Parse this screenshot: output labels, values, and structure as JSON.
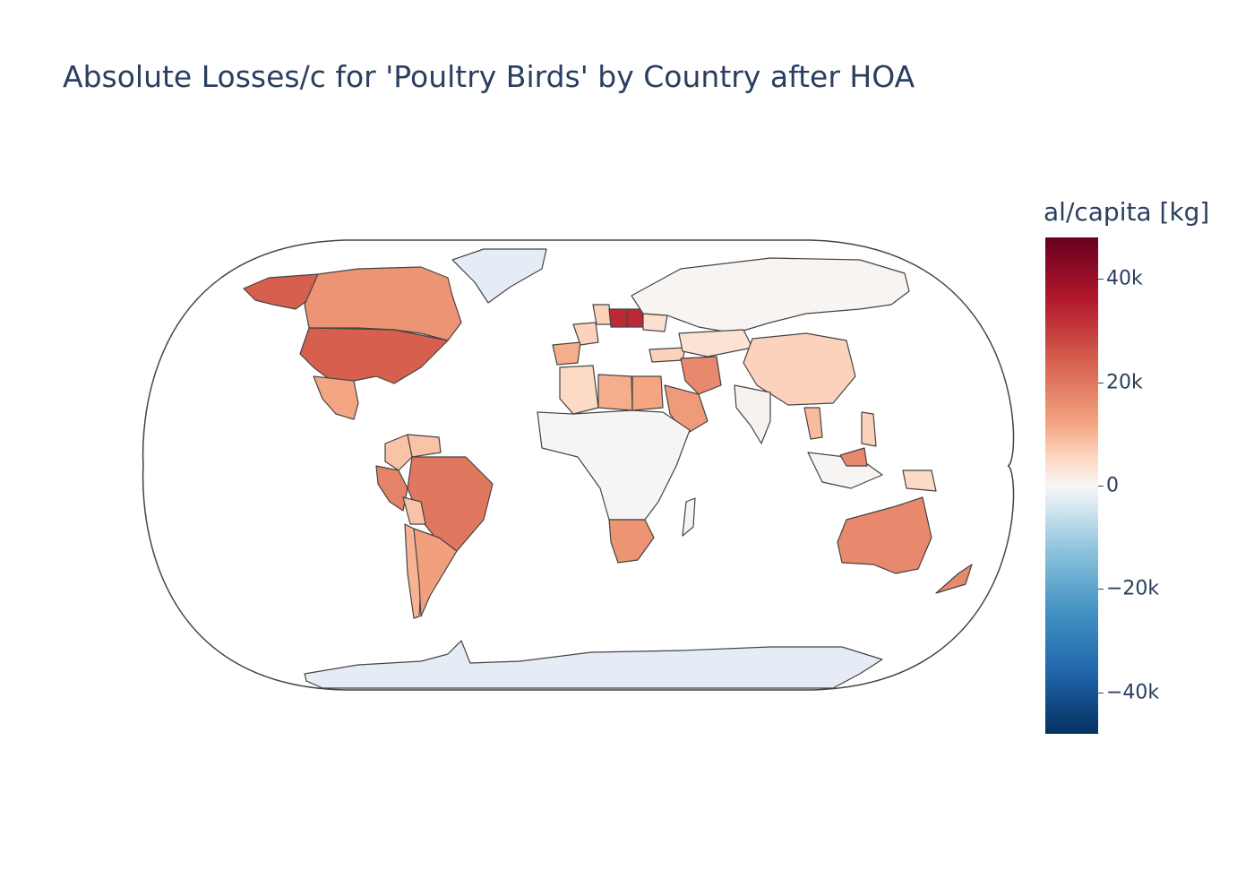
{
  "title": "Absolute Losses/c for 'Poultry Birds' by Country after HOA",
  "colorbar": {
    "title": "al/capita [kg]",
    "scale": "RdBu (reversed)",
    "range": [
      -48000,
      48000
    ],
    "ticks": [
      {
        "value": 40000,
        "label": "40k"
      },
      {
        "value": 20000,
        "label": "20k"
      },
      {
        "value": 0,
        "label": "0"
      },
      {
        "value": -20000,
        "label": "−20k"
      },
      {
        "value": -40000,
        "label": "−40k"
      }
    ]
  },
  "chart_data": {
    "type": "choropleth",
    "projection": "natural earth",
    "colors": {
      "ocean_and_missing": "#ffffff",
      "no_data_land": "#e5ecf6",
      "border": "#444444"
    },
    "approximate_values": [
      {
        "region": "Poland",
        "value": 33000
      },
      {
        "region": "Hungary",
        "value": 33000
      },
      {
        "region": "United States",
        "value": 24000
      },
      {
        "region": "Alaska (United States)",
        "value": 24000
      },
      {
        "region": "Brazil",
        "value": 20000
      },
      {
        "region": "Australia",
        "value": 17000
      },
      {
        "region": "Canada",
        "value": 15000
      },
      {
        "region": "Peru",
        "value": 18000
      },
      {
        "region": "Iran",
        "value": 17000
      },
      {
        "region": "Saudi Arabia",
        "value": 14000
      },
      {
        "region": "Argentina",
        "value": 13000
      },
      {
        "region": "South Africa",
        "value": 15000
      },
      {
        "region": "New Zealand",
        "value": 17000
      },
      {
        "region": "Malaysia",
        "value": 17000
      },
      {
        "region": "Mexico",
        "value": 12000
      },
      {
        "region": "Spain",
        "value": 11000
      },
      {
        "region": "Libya",
        "value": 11000
      },
      {
        "region": "Egypt",
        "value": 12000
      },
      {
        "region": "Algeria",
        "value": 5000
      },
      {
        "region": "Colombia",
        "value": 8000
      },
      {
        "region": "Venezuela",
        "value": 8000
      },
      {
        "region": "Bolivia",
        "value": 8000
      },
      {
        "region": "Chile",
        "value": 10000
      },
      {
        "region": "Thailand",
        "value": 9000
      },
      {
        "region": "Philippines",
        "value": 6000
      },
      {
        "region": "Papua New Guinea",
        "value": 5000
      },
      {
        "region": "China",
        "value": 6000
      },
      {
        "region": "Kazakhstan",
        "value": 3500
      },
      {
        "region": "Turkey",
        "value": 6000
      },
      {
        "region": "Germany",
        "value": 6000
      },
      {
        "region": "France",
        "value": 6000
      },
      {
        "region": "Ukraine",
        "value": 4000
      },
      {
        "region": "Russia",
        "value": 500
      },
      {
        "region": "India",
        "value": 800
      },
      {
        "region": "Central Africa",
        "value": 300
      },
      {
        "region": "Madagascar",
        "value": 300
      },
      {
        "region": "Indonesia",
        "value": 300
      },
      {
        "region": "Greenland",
        "value": null
      },
      {
        "region": "Antarctica",
        "value": null
      }
    ]
  }
}
